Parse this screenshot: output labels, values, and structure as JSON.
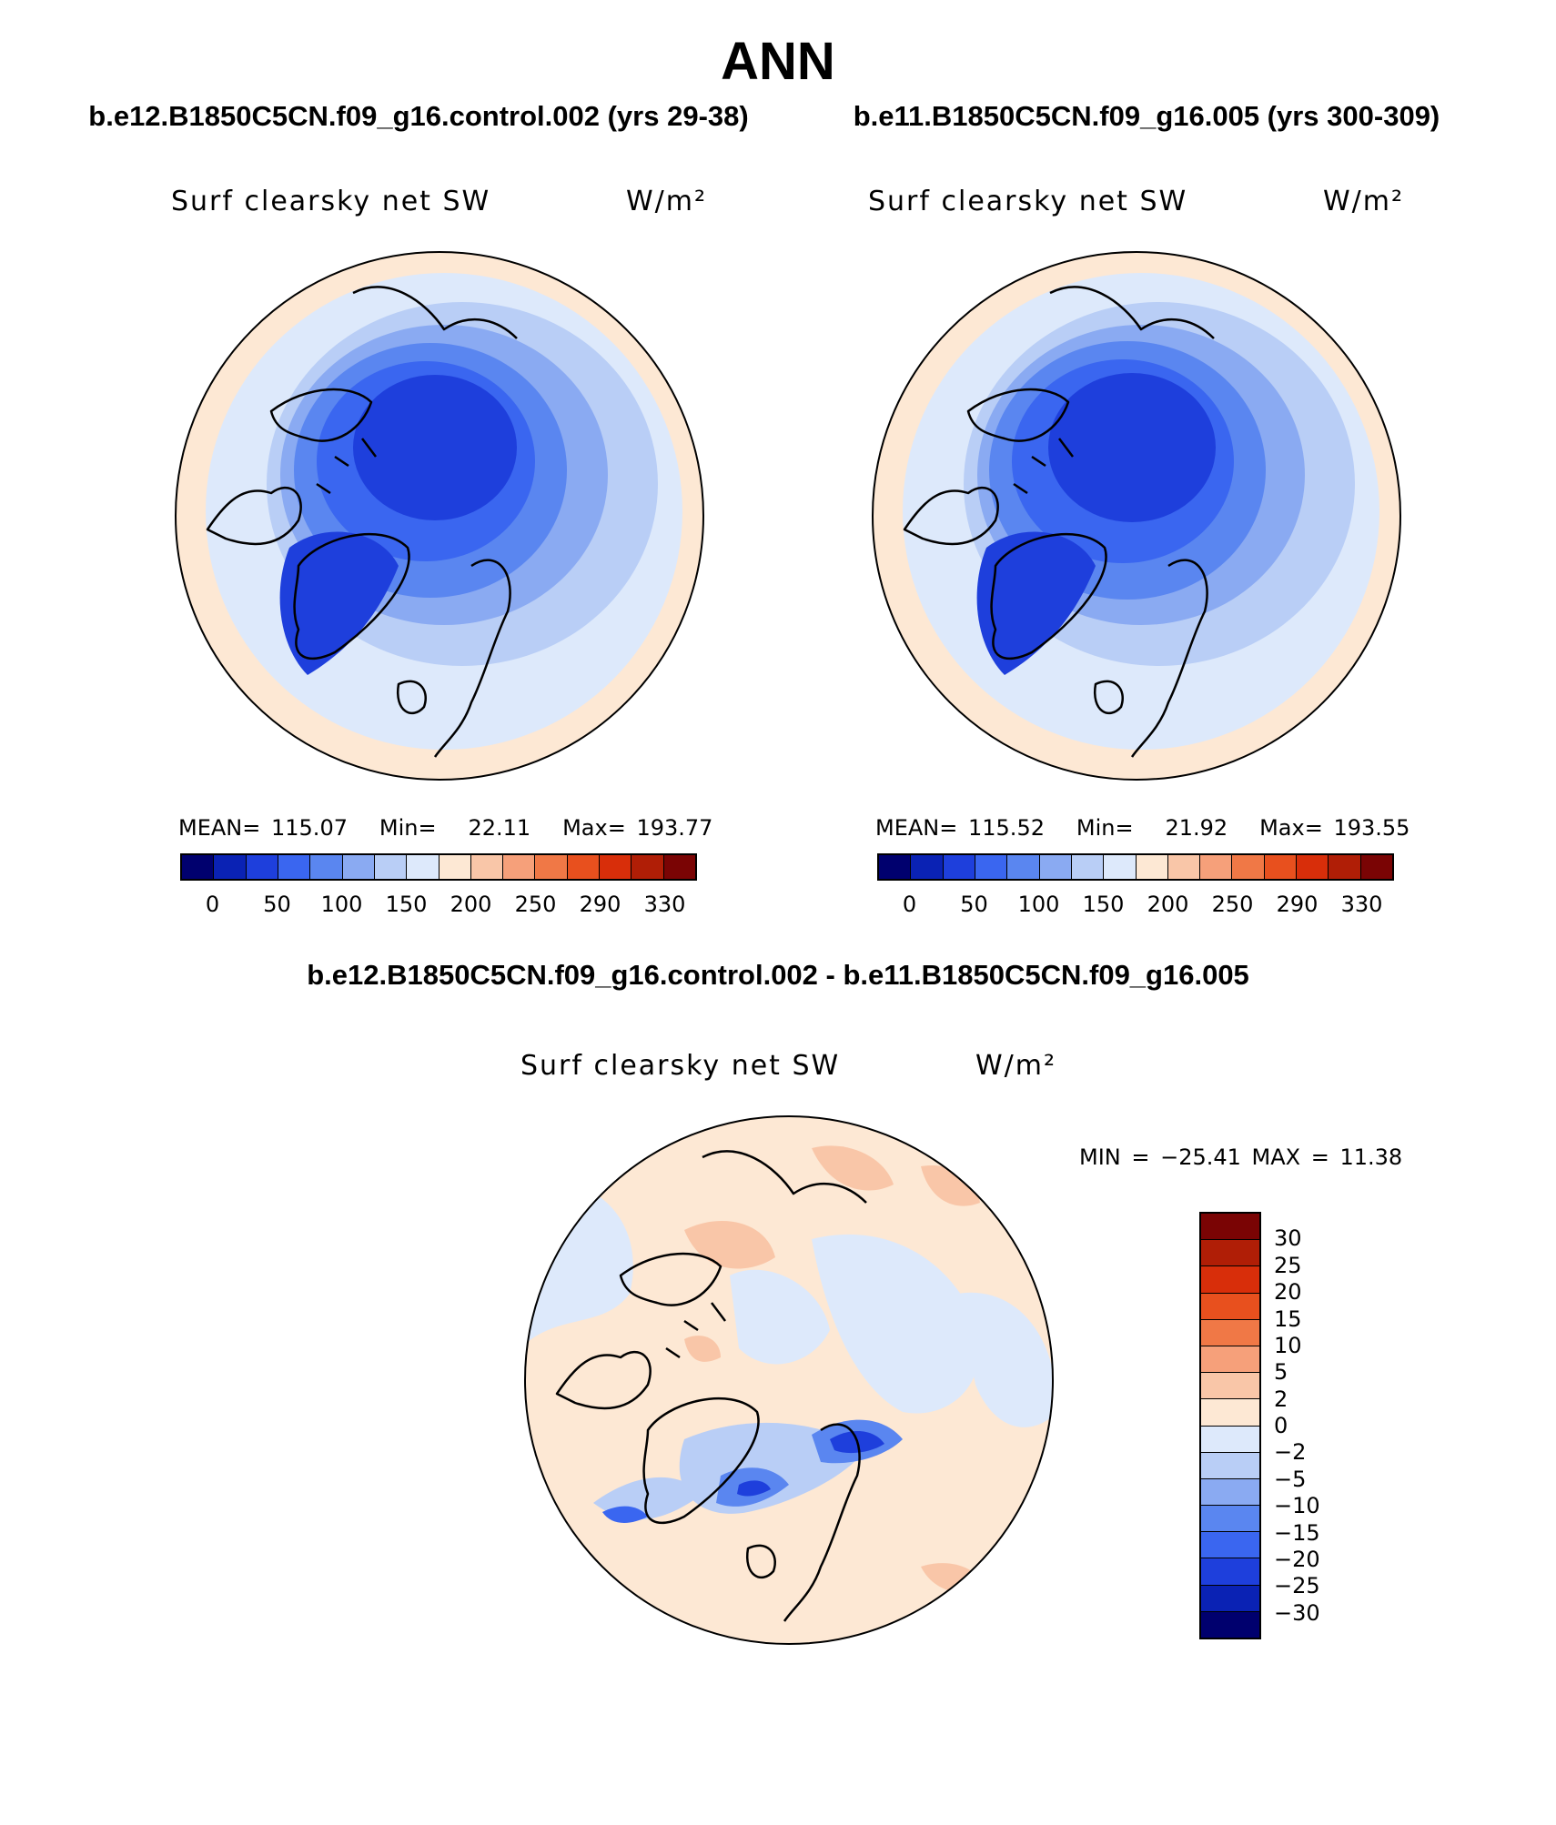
{
  "title": "ANN",
  "panels": [
    {
      "case_title": "b.e12.B1850C5CN.f09_g16.control.002 (yrs 29-38)",
      "variable": "Surf clearsky net SW",
      "units": "W/m²",
      "stats": {
        "mean_label": "MEAN=",
        "mean": "115.07",
        "min_label": "Min=",
        "min": "22.11",
        "max_label": "Max=",
        "max": "193.77"
      }
    },
    {
      "case_title": "b.e11.B1850C5CN.f09_g16.005 (yrs 300-309)",
      "variable": "Surf clearsky net SW",
      "units": "W/m²",
      "stats": {
        "mean_label": "MEAN=",
        "mean": "115.52",
        "min_label": "Min=",
        "min": "21.92",
        "max_label": "Max=",
        "max": "193.55"
      }
    }
  ],
  "abs_colorbar": {
    "colors": [
      "#00006e",
      "#0a22b4",
      "#1e3fdc",
      "#3a66f0",
      "#5a86f0",
      "#8aaaf2",
      "#b9cef6",
      "#dde9fb",
      "#fde8d4",
      "#f9c6a8",
      "#f6a07a",
      "#f07846",
      "#e8501e",
      "#d82e0a",
      "#b01e06",
      "#7a0404"
    ],
    "ticks": [
      "0",
      "50",
      "100",
      "150",
      "200",
      "250",
      "290",
      "330"
    ]
  },
  "diff_panel": {
    "title": "b.e12.B1850C5CN.f09_g16.control.002 - b.e11.B1850C5CN.f09_g16.005",
    "variable": "Surf clearsky net SW",
    "units": "W/m²",
    "minmax": "MIN = −25.41 MAX =   11.38"
  },
  "diff_colorbar": {
    "colors_top_to_bottom": [
      "#7a0404",
      "#b01e06",
      "#d82e0a",
      "#e8501e",
      "#f07846",
      "#f6a07a",
      "#f9c6a8",
      "#fde8d4",
      "#dde9fb",
      "#b9cef6",
      "#8aaaf2",
      "#5a86f0",
      "#3a66f0",
      "#1e3fdc",
      "#0a22b4",
      "#00006e"
    ],
    "ticks_top_to_bottom": [
      "30",
      "25",
      "20",
      "15",
      "10",
      "5",
      "2",
      "0",
      "−2",
      "−5",
      "−10",
      "−15",
      "−20",
      "−25",
      "−30"
    ]
  }
}
